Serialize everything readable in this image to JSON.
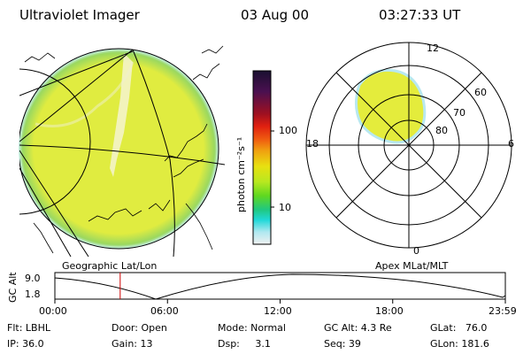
{
  "header": {
    "title": "Ultraviolet Imager",
    "date": "03 Aug 00",
    "time": "03:27:33 UT"
  },
  "colorbar": {
    "unit_label": "photon cm⁻²s⁻¹",
    "ticks": [
      "100",
      "10"
    ],
    "colors": [
      "#1a1030",
      "#4a1050",
      "#a01020",
      "#e02010",
      "#f06010",
      "#f0a010",
      "#e8e010",
      "#b8e820",
      "#60d820",
      "#20c880",
      "#20d8d8",
      "#b0e8f0",
      "#f0f0f0"
    ]
  },
  "panels": {
    "left_caption": "Geographic Lat/Lon",
    "right_caption": "Apex MLat/MLT"
  },
  "polar_plot": {
    "mlt_labels": {
      "top": "12",
      "left": "18",
      "right": "6",
      "bottom": "0"
    },
    "lat_labels": [
      "60",
      "70",
      "80"
    ]
  },
  "timeline": {
    "y_axis_label": "GC Alt",
    "y_ticks": [
      "9.0",
      "1.8"
    ],
    "x_ticks": [
      "00:00",
      "06:00",
      "12:00",
      "18:00",
      "23:59"
    ],
    "marker_color": "#d00000",
    "current_time_fraction": 0.145
  },
  "footer": {
    "filter": "Flt: LBHL",
    "ip": "IP: 36.0",
    "door": "Door: Open",
    "gain": "Gain: 13",
    "mode": "Mode: Normal",
    "dsp": "Dsp:     3.1",
    "gc_alt": "GC Alt: 4.3 Re",
    "seq": "Seq: 39",
    "glat": "GLat:   76.0",
    "glon": "GLon: 181.6"
  }
}
